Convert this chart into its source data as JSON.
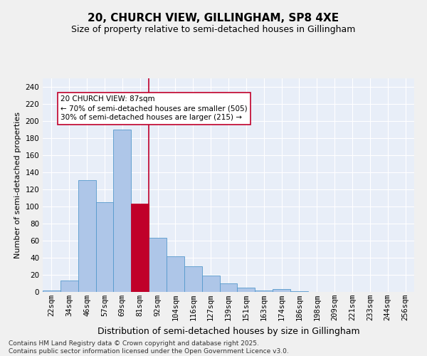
{
  "title": "20, CHURCH VIEW, GILLINGHAM, SP8 4XE",
  "subtitle": "Size of property relative to semi-detached houses in Gillingham",
  "xlabel": "Distribution of semi-detached houses by size in Gillingham",
  "ylabel": "Number of semi-detached properties",
  "categories": [
    "22sqm",
    "34sqm",
    "46sqm",
    "57sqm",
    "69sqm",
    "81sqm",
    "92sqm",
    "104sqm",
    "116sqm",
    "127sqm",
    "139sqm",
    "151sqm",
    "163sqm",
    "174sqm",
    "186sqm",
    "198sqm",
    "209sqm",
    "221sqm",
    "233sqm",
    "244sqm",
    "256sqm"
  ],
  "values": [
    2,
    13,
    131,
    105,
    190,
    103,
    63,
    42,
    30,
    19,
    10,
    5,
    2,
    3,
    1,
    0,
    0,
    0,
    0,
    0,
    0
  ],
  "highlight_index": 5,
  "highlight_color": "#c0002a",
  "bar_color": "#aec6e8",
  "bar_edge_color": "#5599cc",
  "annotation_text": "20 CHURCH VIEW: 87sqm\n← 70% of semi-detached houses are smaller (505)\n30% of semi-detached houses are larger (215) →",
  "vline_x": 5.5,
  "ylim": [
    0,
    250
  ],
  "yticks": [
    0,
    20,
    40,
    60,
    80,
    100,
    120,
    140,
    160,
    180,
    200,
    220,
    240
  ],
  "bg_color": "#e8eef8",
  "grid_color": "#ffffff",
  "footer": "Contains HM Land Registry data © Crown copyright and database right 2025.\nContains public sector information licensed under the Open Government Licence v3.0.",
  "title_fontsize": 11,
  "subtitle_fontsize": 9,
  "xlabel_fontsize": 9,
  "ylabel_fontsize": 8,
  "footer_fontsize": 6.5,
  "tick_fontsize": 7.5,
  "annot_fontsize": 7.5
}
